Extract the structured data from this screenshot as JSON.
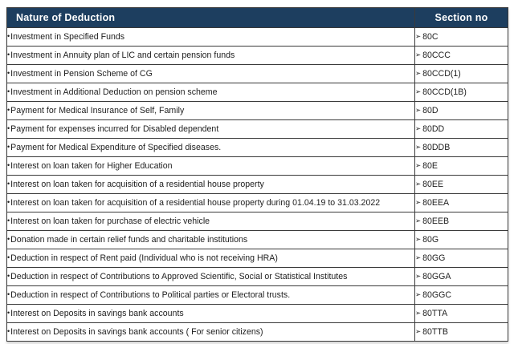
{
  "glyphs": {
    "bullet": "•",
    "arrow": "➢"
  },
  "colors": {
    "header_bg": "#1d3e5f",
    "header_text": "#ffffff",
    "row_text": "#1e1e1e",
    "border": "#3a3a3a"
  },
  "header": {
    "nature": "Nature of Deduction",
    "section": "Section no"
  },
  "rows": [
    {
      "nature": "Investment in Specified Funds",
      "section": "80C"
    },
    {
      "nature": "Investment in Annuity plan of LIC and certain pension funds",
      "section": "80CCC"
    },
    {
      "nature": "Investment in Pension Scheme of CG",
      "section": "80CCD(1)"
    },
    {
      "nature": "Investment in Additional Deduction on pension scheme",
      "section": "80CCD(1B)"
    },
    {
      "nature": "Payment for Medical Insurance of Self, Family",
      "section": "80D"
    },
    {
      "nature": "Payment for expenses incurred for Disabled dependent",
      "section": "80DD"
    },
    {
      "nature": "Payment for Medical Expenditure of Specified diseases.",
      "section": "80DDB"
    },
    {
      "nature": "Interest on loan taken for Higher Education",
      "section": "80E"
    },
    {
      "nature": "Interest on loan taken for acquisition of a residential house property",
      "section": "80EE"
    },
    {
      "nature": "Interest on loan taken for acquisition of a residential house property during 01.04.19 to 31.03.2022",
      "section": "80EEA"
    },
    {
      "nature": "Interest on loan taken for purchase of electric vehicle",
      "section": "80EEB"
    },
    {
      "nature": "Donation made in certain relief funds and charitable institutions",
      "section": "80G"
    },
    {
      "nature": "Deduction in respect of Rent paid (Individual who is not receiving HRA)",
      "section": "80GG"
    },
    {
      "nature": "Deduction in respect of Contributions to Approved Scientific, Social or Statistical Institutes",
      "section": "80GGA"
    },
    {
      "nature": "Deduction in respect of Contributions to Political parties or Electoral trusts.",
      "section": "80GGC"
    },
    {
      "nature": "Interest on Deposits in savings bank accounts",
      "section": "80TTA"
    },
    {
      "nature": "Interest on Deposits in savings bank accounts ( For senior citizens)",
      "section": "80TTB"
    }
  ]
}
